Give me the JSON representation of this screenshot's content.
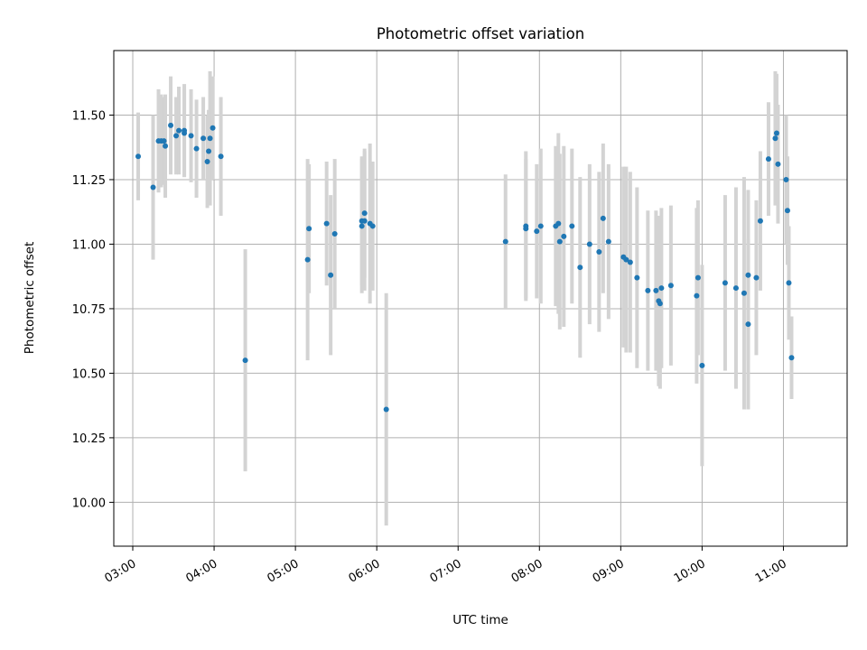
{
  "chart_data": {
    "type": "scatter",
    "title": "Photometric offset variation",
    "xlabel": "UTC time",
    "ylabel": "Photometric offset",
    "grid": true,
    "legend": "none",
    "xlim": [
      "02:46",
      "11:47"
    ],
    "ylim": [
      9.83,
      11.75
    ],
    "xticks": [
      "03:00",
      "04:00",
      "05:00",
      "06:00",
      "07:00",
      "08:00",
      "09:00",
      "10:00",
      "11:00"
    ],
    "yticks": [
      "10.00",
      "10.25",
      "10.50",
      "10.75",
      "11.00",
      "11.25",
      "11.50"
    ],
    "colors": {
      "point": "#1f77b4",
      "error_bar": "#d3d3d3",
      "grid": "#b0b0b0"
    },
    "series": [
      {
        "x": [
          "03:04",
          "03:15",
          "03:19",
          "03:21",
          "03:23",
          "03:24",
          "03:28",
          "03:32",
          "03:34",
          "03:38",
          "03:38",
          "03:43",
          "03:47",
          "03:52",
          "03:55",
          "03:56",
          "03:57",
          "03:59",
          "04:05",
          "04:23",
          "05:09",
          "05:10",
          "05:23",
          "05:26",
          "05:29",
          "05:49",
          "05:49",
          "05:51",
          "05:51",
          "05:55",
          "05:57",
          "06:07",
          "07:35",
          "07:50",
          "07:50",
          "07:58",
          "08:01",
          "08:12",
          "08:14",
          "08:15",
          "08:18",
          "08:24",
          "08:30",
          "08:37",
          "08:44",
          "08:47",
          "08:51",
          "09:02",
          "09:04",
          "09:07",
          "09:12",
          "09:20",
          "09:26",
          "09:28",
          "09:29",
          "09:30",
          "09:37",
          "09:56",
          "09:57",
          "10:00",
          "10:17",
          "10:25",
          "10:31",
          "10:34",
          "10:34",
          "10:40",
          "10:43",
          "10:49",
          "10:54",
          "10:55",
          "10:56",
          "11:02",
          "11:03",
          "11:04",
          "11:06"
        ],
        "y": [
          11.34,
          11.22,
          11.4,
          11.4,
          11.4,
          11.38,
          11.46,
          11.42,
          11.44,
          11.44,
          11.43,
          11.42,
          11.37,
          11.41,
          11.32,
          11.36,
          11.41,
          11.45,
          11.34,
          10.55,
          10.94,
          11.06,
          11.08,
          10.88,
          11.04,
          11.07,
          11.09,
          11.12,
          11.09,
          11.08,
          11.07,
          10.36,
          11.01,
          11.07,
          11.06,
          11.05,
          11.07,
          11.07,
          11.08,
          11.01,
          11.03,
          11.07,
          10.91,
          11.0,
          10.97,
          11.1,
          11.01,
          10.95,
          10.94,
          10.93,
          10.87,
          10.82,
          10.82,
          10.78,
          10.77,
          10.83,
          10.84,
          10.8,
          10.87,
          10.53,
          10.85,
          10.83,
          10.81,
          10.69,
          10.88,
          10.87,
          11.09,
          11.33,
          11.41,
          11.43,
          11.31,
          11.25,
          11.13,
          10.85,
          10.56
        ],
        "err": [
          0.17,
          0.28,
          0.2,
          0.18,
          0.17,
          0.2,
          0.19,
          0.15,
          0.17,
          0.18,
          0.17,
          0.18,
          0.19,
          0.16,
          0.18,
          0.16,
          0.26,
          0.2,
          0.23,
          0.43,
          0.39,
          0.25,
          0.24,
          0.31,
          0.29,
          0.26,
          0.25,
          0.25,
          0.27,
          0.31,
          0.25,
          0.45,
          0.26,
          0.29,
          0.27,
          0.26,
          0.3,
          0.31,
          0.35,
          0.34,
          0.35,
          0.3,
          0.35,
          0.31,
          0.31,
          0.29,
          0.3,
          0.35,
          0.36,
          0.35,
          0.35,
          0.31,
          0.31,
          0.33,
          0.33,
          0.31,
          0.31,
          0.34,
          0.3,
          0.39,
          0.34,
          0.39,
          0.45,
          0.33,
          0.33,
          0.3,
          0.27,
          0.22,
          0.26,
          0.23,
          0.23,
          0.25,
          0.21,
          0.22,
          0.16
        ]
      }
    ]
  }
}
